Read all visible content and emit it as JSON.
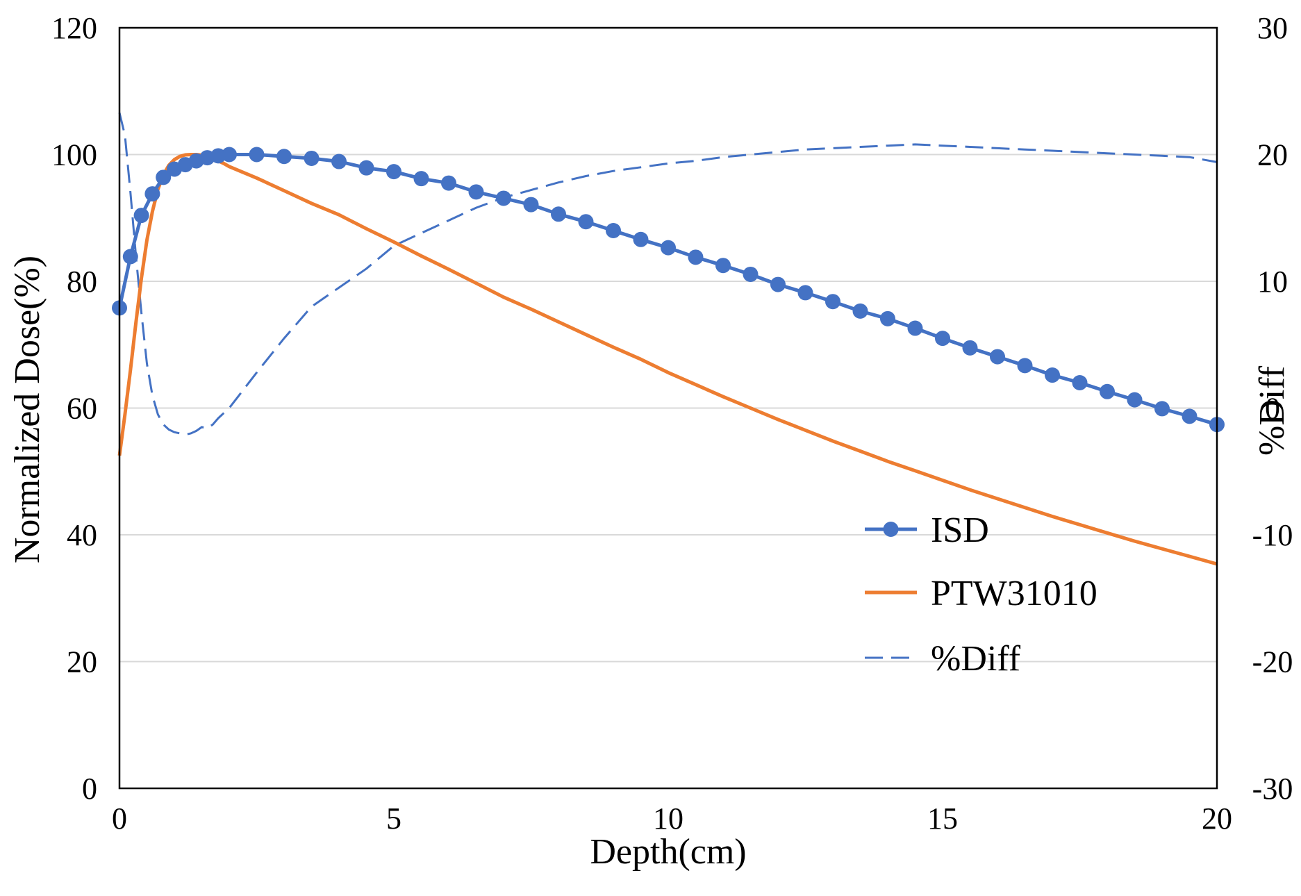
{
  "chart_data": {
    "type": "line",
    "title": "",
    "xlabel": "Depth(cm)",
    "ylabel": "Normalized Dose(%)",
    "y2label": "%Diff",
    "xlim": [
      0,
      20
    ],
    "ylim": [
      0,
      120
    ],
    "y2lim": [
      -30,
      30
    ],
    "xticks": [
      "0",
      "5",
      "10",
      "15",
      "20"
    ],
    "yticks": [
      "0",
      "20",
      "40",
      "60",
      "80",
      "100",
      "120"
    ],
    "y2ticks": [
      "-30",
      "-20",
      "-10",
      "0",
      "10",
      "20",
      "30"
    ],
    "grid": "horizontal",
    "legend_position": "right-lower",
    "colors": {
      "isd": "#4472C4",
      "ptw": "#ED7D31",
      "diff": "#4472C4"
    },
    "series": [
      {
        "name": "ISD",
        "axis": "left",
        "style": "line-markers",
        "x": [
          0,
          0.2,
          0.4,
          0.6,
          0.8,
          1.0,
          1.2,
          1.4,
          1.6,
          1.8,
          2.0,
          2.5,
          3.0,
          3.5,
          4.0,
          4.5,
          5.0,
          5.5,
          6.0,
          6.5,
          7.0,
          7.5,
          8.0,
          8.5,
          9.0,
          9.5,
          10.0,
          10.5,
          11.0,
          11.5,
          12.0,
          12.5,
          13.0,
          13.5,
          14.0,
          14.5,
          15.0,
          15.5,
          16.0,
          16.5,
          17.0,
          17.5,
          18.0,
          18.5,
          19.0,
          19.5,
          20.0
        ],
        "values": [
          75.8,
          83.9,
          90.4,
          93.8,
          96.4,
          97.7,
          98.4,
          99.0,
          99.5,
          99.8,
          100.0,
          100.0,
          99.7,
          99.4,
          98.9,
          97.9,
          97.3,
          96.2,
          95.5,
          94.1,
          93.1,
          92.1,
          90.6,
          89.4,
          88.0,
          86.6,
          85.3,
          83.8,
          82.5,
          81.1,
          79.5,
          78.2,
          76.8,
          75.3,
          74.1,
          72.6,
          71.0,
          69.5,
          68.1,
          66.7,
          65.2,
          64.0,
          62.6,
          61.3,
          59.9,
          58.7,
          57.4
        ]
      },
      {
        "name": "PTW31010",
        "axis": "left",
        "style": "solid",
        "x": [
          0,
          0.1,
          0.2,
          0.3,
          0.4,
          0.5,
          0.6,
          0.7,
          0.8,
          0.9,
          1.0,
          1.1,
          1.2,
          1.3,
          1.4,
          1.5,
          1.6,
          1.7,
          1.8,
          1.9,
          2.0,
          2.5,
          3.0,
          3.5,
          4.0,
          4.5,
          5.0,
          5.5,
          6.0,
          6.5,
          7.0,
          7.5,
          8.0,
          8.5,
          9.0,
          9.5,
          10.0,
          10.5,
          11.0,
          11.5,
          12.0,
          12.5,
          13.0,
          13.5,
          14.0,
          14.5,
          15.0,
          15.5,
          16.0,
          16.5,
          17.0,
          17.5,
          18.0,
          18.5,
          19.0,
          19.5,
          20.0
        ],
        "values": [
          52.5,
          59.0,
          66.0,
          73.5,
          80.5,
          86.5,
          91.0,
          94.5,
          96.8,
          98.3,
          99.2,
          99.7,
          99.95,
          100.0,
          100.0,
          99.9,
          99.7,
          99.4,
          99.0,
          98.6,
          98.1,
          96.3,
          94.3,
          92.3,
          90.5,
          88.3,
          86.2,
          84.0,
          81.9,
          79.7,
          77.5,
          75.6,
          73.6,
          71.6,
          69.6,
          67.7,
          65.6,
          63.7,
          61.8,
          60.0,
          58.2,
          56.5,
          54.8,
          53.2,
          51.6,
          50.1,
          48.6,
          47.1,
          45.7,
          44.3,
          42.9,
          41.6,
          40.3,
          39.0,
          37.8,
          36.6,
          35.4
        ]
      },
      {
        "name": "%Diff",
        "axis": "right",
        "style": "dashed",
        "x": [
          0,
          0.1,
          0.2,
          0.3,
          0.4,
          0.5,
          0.6,
          0.7,
          0.8,
          0.9,
          1.0,
          1.1,
          1.2,
          1.3,
          1.4,
          1.5,
          1.6,
          1.7,
          1.8,
          2.0,
          2.5,
          3.0,
          3.5,
          4.0,
          4.5,
          5.0,
          5.5,
          6.0,
          6.5,
          7.0,
          7.5,
          8.0,
          8.5,
          9.0,
          9.5,
          10.0,
          10.5,
          11.0,
          11.5,
          12.0,
          12.5,
          13.0,
          13.5,
          14.0,
          14.5,
          15.0,
          15.5,
          16.0,
          16.5,
          17.0,
          17.5,
          18.0,
          18.5,
          19.0,
          19.5,
          20.0
        ],
        "values": [
          23.3,
          21.5,
          17.0,
          12.0,
          7.5,
          3.5,
          1.0,
          -0.5,
          -1.3,
          -1.7,
          -1.9,
          -2.0,
          -2.1,
          -2.0,
          -1.8,
          -1.5,
          -1.6,
          -1.3,
          -0.8,
          0.0,
          2.8,
          5.5,
          8.0,
          9.5,
          11.0,
          12.8,
          13.8,
          14.8,
          15.8,
          16.6,
          17.2,
          17.8,
          18.3,
          18.7,
          19.0,
          19.3,
          19.5,
          19.8,
          20.0,
          20.2,
          20.4,
          20.5,
          20.6,
          20.7,
          20.8,
          20.7,
          20.6,
          20.5,
          20.4,
          20.3,
          20.2,
          20.1,
          20.0,
          19.9,
          19.8,
          19.4
        ]
      }
    ]
  }
}
